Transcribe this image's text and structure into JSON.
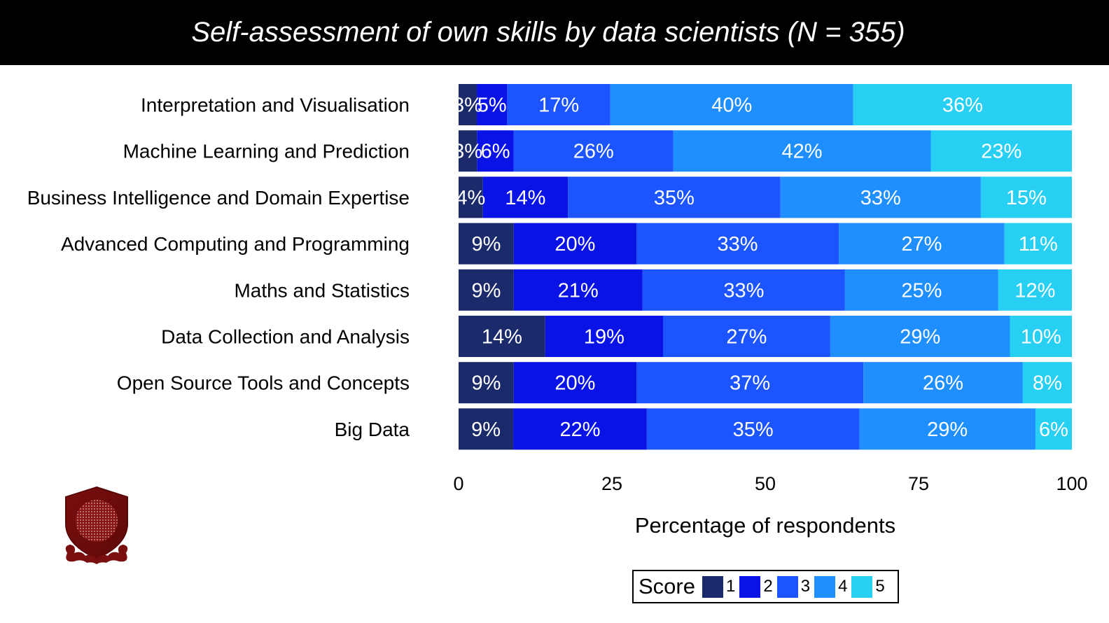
{
  "header": {
    "title": "Self-assessment of own skills by data scientists (N = 355)"
  },
  "logo": {
    "icon": "crest-shield-icon"
  },
  "chart_data": {
    "type": "bar",
    "orientation": "horizontal",
    "stacked": true,
    "title": "Self-assessment of own skills by data scientists (N = 355)",
    "xlabel": "Percentage of respondents",
    "ylabel": "",
    "xlim": [
      0,
      100
    ],
    "xticks": [
      0,
      25,
      50,
      75,
      100
    ],
    "categories": [
      "Interpretation and Visualisation",
      "Machine Learning and Prediction",
      "Business Intelligence and Domain Expertise",
      "Advanced Computing and Programming",
      "Maths and Statistics",
      "Data Collection and Analysis",
      "Open Source Tools and Concepts",
      "Big Data"
    ],
    "series": [
      {
        "name": "1",
        "color": "#1b2a6b",
        "values": [
          3,
          3,
          4,
          9,
          9,
          14,
          9,
          9
        ]
      },
      {
        "name": "2",
        "color": "#0a13e6",
        "values": [
          5,
          6,
          14,
          20,
          21,
          19,
          20,
          22
        ]
      },
      {
        "name": "3",
        "color": "#1c55ff",
        "values": [
          17,
          26,
          35,
          33,
          33,
          27,
          37,
          35
        ]
      },
      {
        "name": "4",
        "color": "#1f8fff",
        "values": [
          40,
          42,
          33,
          27,
          25,
          29,
          26,
          29
        ]
      },
      {
        "name": "5",
        "color": "#27cff2",
        "values": [
          36,
          23,
          15,
          11,
          12,
          10,
          8,
          6
        ]
      }
    ],
    "legend": {
      "title": "Score",
      "placement": "bottom"
    },
    "grid": false,
    "data_label_color": "#ffffff"
  }
}
